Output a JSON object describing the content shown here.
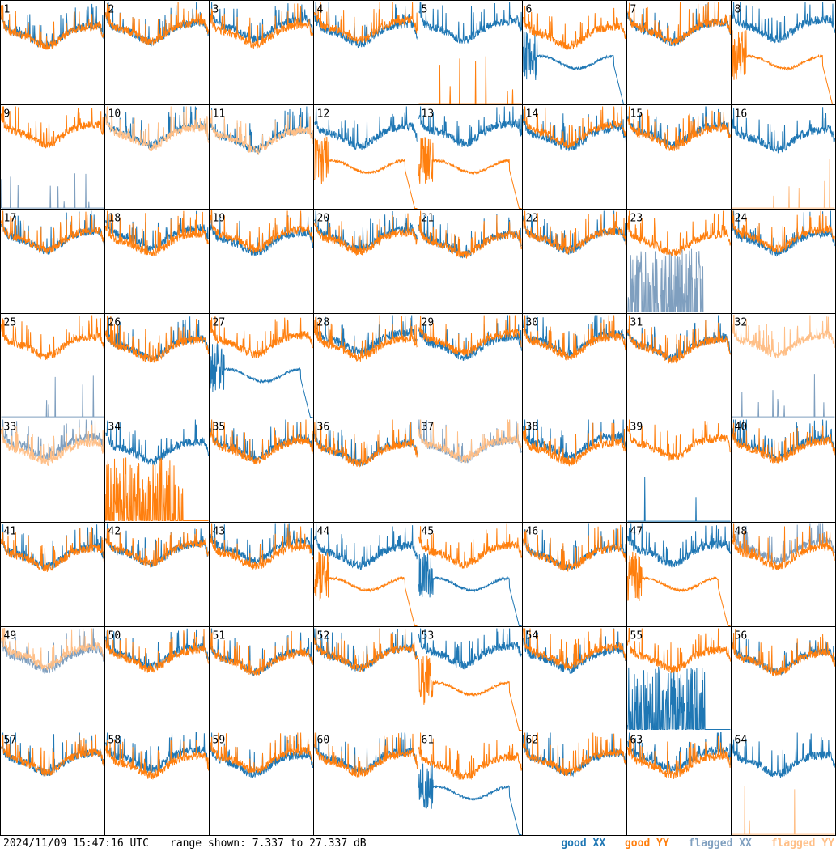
{
  "title": "",
  "timestamp": "2024/11/09 15:47:16 UTC",
  "range_text": "range shown: 7.337 to 27.337 dB",
  "legend": {
    "good_xx": "good XX",
    "good_yy": "good YY",
    "flagged_xx": "flagged XX",
    "flagged_yy": "flagged YY"
  },
  "colors": {
    "good_xx": "#1f77b4",
    "good_yy": "#ff7f0e",
    "flagged_xx": "#7f9fbf",
    "flagged_yy": "#ffbf87",
    "grid": "#000000",
    "background": "#ffffff"
  },
  "chart_data": {
    "type": "line",
    "layout": "8x8 small multiples",
    "ylim": [
      7.337,
      27.337
    ],
    "yunit": "dB",
    "xlabel": "",
    "ylabel": "",
    "grid": false,
    "panels": [
      {
        "id": "1",
        "shape": {
          "xx": "normal",
          "yy": "normal"
        },
        "status": {
          "xx": "good",
          "yy": "good"
        }
      },
      {
        "id": "2",
        "shape": {
          "xx": "normal",
          "yy": "normal"
        },
        "status": {
          "xx": "good",
          "yy": "good"
        }
      },
      {
        "id": "3",
        "shape": {
          "xx": "normal",
          "yy": "normal"
        },
        "status": {
          "xx": "good",
          "yy": "good"
        }
      },
      {
        "id": "4",
        "shape": {
          "xx": "normal",
          "yy": "normal"
        },
        "status": {
          "xx": "good",
          "yy": "good"
        }
      },
      {
        "id": "5",
        "shape": {
          "xx": "normal",
          "yy": "dead"
        },
        "status": {
          "xx": "good",
          "yy": "good"
        }
      },
      {
        "id": "6",
        "shape": {
          "xx": "reflect",
          "yy": "normal"
        },
        "status": {
          "xx": "good",
          "yy": "good"
        }
      },
      {
        "id": "7",
        "shape": {
          "xx": "normal",
          "yy": "normal"
        },
        "status": {
          "xx": "good",
          "yy": "good"
        }
      },
      {
        "id": "8",
        "shape": {
          "xx": "normal",
          "yy": "reflect"
        },
        "status": {
          "xx": "good",
          "yy": "good"
        }
      },
      {
        "id": "9",
        "shape": {
          "xx": "dead",
          "yy": "normal"
        },
        "status": {
          "xx": "flagged",
          "yy": "good"
        }
      },
      {
        "id": "10",
        "shape": {
          "xx": "normal",
          "yy": "normal"
        },
        "status": {
          "xx": "good",
          "yy": "flagged"
        }
      },
      {
        "id": "11",
        "shape": {
          "xx": "normal",
          "yy": "normal"
        },
        "status": {
          "xx": "good",
          "yy": "flagged"
        }
      },
      {
        "id": "12",
        "shape": {
          "xx": "normal",
          "yy": "reflect"
        },
        "status": {
          "xx": "good",
          "yy": "good"
        }
      },
      {
        "id": "13",
        "shape": {
          "xx": "normal",
          "yy": "reflect"
        },
        "status": {
          "xx": "good",
          "yy": "good"
        }
      },
      {
        "id": "14",
        "shape": {
          "xx": "normal",
          "yy": "normal"
        },
        "status": {
          "xx": "good",
          "yy": "good"
        }
      },
      {
        "id": "15",
        "shape": {
          "xx": "normal",
          "yy": "normal"
        },
        "status": {
          "xx": "good",
          "yy": "good"
        }
      },
      {
        "id": "16",
        "shape": {
          "xx": "normal",
          "yy": "dead"
        },
        "status": {
          "xx": "good",
          "yy": "flagged"
        }
      },
      {
        "id": "17",
        "shape": {
          "xx": "normal",
          "yy": "normal"
        },
        "status": {
          "xx": "good",
          "yy": "good"
        }
      },
      {
        "id": "18",
        "shape": {
          "xx": "normal",
          "yy": "normal"
        },
        "status": {
          "xx": "good",
          "yy": "good"
        }
      },
      {
        "id": "19",
        "shape": {
          "xx": "normal",
          "yy": "normal"
        },
        "status": {
          "xx": "good",
          "yy": "good"
        }
      },
      {
        "id": "20",
        "shape": {
          "xx": "normal",
          "yy": "normal"
        },
        "status": {
          "xx": "good",
          "yy": "good"
        }
      },
      {
        "id": "21",
        "shape": {
          "xx": "normal",
          "yy": "normal"
        },
        "status": {
          "xx": "good",
          "yy": "good"
        }
      },
      {
        "id": "22",
        "shape": {
          "xx": "normal",
          "yy": "normal"
        },
        "status": {
          "xx": "good",
          "yy": "good"
        }
      },
      {
        "id": "23",
        "shape": {
          "xx": "noisy",
          "yy": "normal"
        },
        "status": {
          "xx": "flagged",
          "yy": "good"
        }
      },
      {
        "id": "24",
        "shape": {
          "xx": "normal",
          "yy": "normal"
        },
        "status": {
          "xx": "good",
          "yy": "good"
        }
      },
      {
        "id": "25",
        "shape": {
          "xx": "dead",
          "yy": "normal"
        },
        "status": {
          "xx": "flagged",
          "yy": "good"
        }
      },
      {
        "id": "26",
        "shape": {
          "xx": "normal",
          "yy": "normal"
        },
        "status": {
          "xx": "good",
          "yy": "good"
        }
      },
      {
        "id": "27",
        "shape": {
          "xx": "reflect",
          "yy": "normal"
        },
        "status": {
          "xx": "good",
          "yy": "good"
        }
      },
      {
        "id": "28",
        "shape": {
          "xx": "normal",
          "yy": "normal"
        },
        "status": {
          "xx": "good",
          "yy": "good"
        }
      },
      {
        "id": "29",
        "shape": {
          "xx": "normal",
          "yy": "normal"
        },
        "status": {
          "xx": "good",
          "yy": "good"
        }
      },
      {
        "id": "30",
        "shape": {
          "xx": "normal",
          "yy": "normal"
        },
        "status": {
          "xx": "good",
          "yy": "good"
        }
      },
      {
        "id": "31",
        "shape": {
          "xx": "normal",
          "yy": "normal"
        },
        "status": {
          "xx": "good",
          "yy": "good"
        }
      },
      {
        "id": "32",
        "shape": {
          "xx": "dead",
          "yy": "normal"
        },
        "status": {
          "xx": "flagged",
          "yy": "flagged"
        }
      },
      {
        "id": "33",
        "shape": {
          "xx": "normal",
          "yy": "normal"
        },
        "status": {
          "xx": "flagged",
          "yy": "flagged"
        }
      },
      {
        "id": "34",
        "shape": {
          "xx": "normal",
          "yy": "noisy"
        },
        "status": {
          "xx": "good",
          "yy": "good"
        }
      },
      {
        "id": "35",
        "shape": {
          "xx": "normal",
          "yy": "normal"
        },
        "status": {
          "xx": "good",
          "yy": "good"
        }
      },
      {
        "id": "36",
        "shape": {
          "xx": "normal",
          "yy": "normal"
        },
        "status": {
          "xx": "good",
          "yy": "good"
        }
      },
      {
        "id": "37",
        "shape": {
          "xx": "normal",
          "yy": "normal"
        },
        "status": {
          "xx": "flagged",
          "yy": "flagged"
        }
      },
      {
        "id": "38",
        "shape": {
          "xx": "normal",
          "yy": "normal"
        },
        "status": {
          "xx": "good",
          "yy": "good"
        }
      },
      {
        "id": "39",
        "shape": {
          "xx": "dead",
          "yy": "normal"
        },
        "status": {
          "xx": "good",
          "yy": "good"
        }
      },
      {
        "id": "40",
        "shape": {
          "xx": "normal",
          "yy": "normal"
        },
        "status": {
          "xx": "good",
          "yy": "good"
        }
      },
      {
        "id": "41",
        "shape": {
          "xx": "normal",
          "yy": "normal"
        },
        "status": {
          "xx": "good",
          "yy": "good"
        }
      },
      {
        "id": "42",
        "shape": {
          "xx": "normal",
          "yy": "normal"
        },
        "status": {
          "xx": "good",
          "yy": "good"
        }
      },
      {
        "id": "43",
        "shape": {
          "xx": "normal",
          "yy": "normal"
        },
        "status": {
          "xx": "good",
          "yy": "good"
        }
      },
      {
        "id": "44",
        "shape": {
          "xx": "normal",
          "yy": "reflect"
        },
        "status": {
          "xx": "good",
          "yy": "good"
        }
      },
      {
        "id": "45",
        "shape": {
          "xx": "reflect",
          "yy": "normal"
        },
        "status": {
          "xx": "good",
          "yy": "good"
        }
      },
      {
        "id": "46",
        "shape": {
          "xx": "normal",
          "yy": "normal"
        },
        "status": {
          "xx": "good",
          "yy": "good"
        }
      },
      {
        "id": "47",
        "shape": {
          "xx": "normal",
          "yy": "reflect"
        },
        "status": {
          "xx": "good",
          "yy": "good"
        }
      },
      {
        "id": "48",
        "shape": {
          "xx": "normal",
          "yy": "normal"
        },
        "status": {
          "xx": "flagged",
          "yy": "good"
        }
      },
      {
        "id": "49",
        "shape": {
          "xx": "normal",
          "yy": "normal"
        },
        "status": {
          "xx": "flagged",
          "yy": "flagged"
        }
      },
      {
        "id": "50",
        "shape": {
          "xx": "normal",
          "yy": "normal"
        },
        "status": {
          "xx": "good",
          "yy": "good"
        }
      },
      {
        "id": "51",
        "shape": {
          "xx": "normal",
          "yy": "normal"
        },
        "status": {
          "xx": "good",
          "yy": "good"
        }
      },
      {
        "id": "52",
        "shape": {
          "xx": "normal",
          "yy": "normal"
        },
        "status": {
          "xx": "good",
          "yy": "good"
        }
      },
      {
        "id": "53",
        "shape": {
          "xx": "normal",
          "yy": "reflect"
        },
        "status": {
          "xx": "good",
          "yy": "good"
        }
      },
      {
        "id": "54",
        "shape": {
          "xx": "normal",
          "yy": "normal"
        },
        "status": {
          "xx": "good",
          "yy": "good"
        }
      },
      {
        "id": "55",
        "shape": {
          "xx": "noisy",
          "yy": "normal"
        },
        "status": {
          "xx": "good",
          "yy": "good"
        }
      },
      {
        "id": "56",
        "shape": {
          "xx": "normal",
          "yy": "normal"
        },
        "status": {
          "xx": "good",
          "yy": "good"
        }
      },
      {
        "id": "57",
        "shape": {
          "xx": "normal",
          "yy": "normal"
        },
        "status": {
          "xx": "good",
          "yy": "good"
        }
      },
      {
        "id": "58",
        "shape": {
          "xx": "normal",
          "yy": "normal"
        },
        "status": {
          "xx": "good",
          "yy": "good"
        }
      },
      {
        "id": "59",
        "shape": {
          "xx": "normal",
          "yy": "normal"
        },
        "status": {
          "xx": "good",
          "yy": "good"
        }
      },
      {
        "id": "60",
        "shape": {
          "xx": "normal",
          "yy": "normal"
        },
        "status": {
          "xx": "good",
          "yy": "good"
        }
      },
      {
        "id": "61",
        "shape": {
          "xx": "reflect",
          "yy": "normal"
        },
        "status": {
          "xx": "good",
          "yy": "good"
        }
      },
      {
        "id": "62",
        "shape": {
          "xx": "normal",
          "yy": "normal"
        },
        "status": {
          "xx": "good",
          "yy": "good"
        }
      },
      {
        "id": "63",
        "shape": {
          "xx": "normal",
          "yy": "normal"
        },
        "status": {
          "xx": "good",
          "yy": "good"
        }
      },
      {
        "id": "64",
        "shape": {
          "xx": "normal",
          "yy": "dead"
        },
        "status": {
          "xx": "good",
          "yy": "flagged"
        }
      }
    ]
  }
}
